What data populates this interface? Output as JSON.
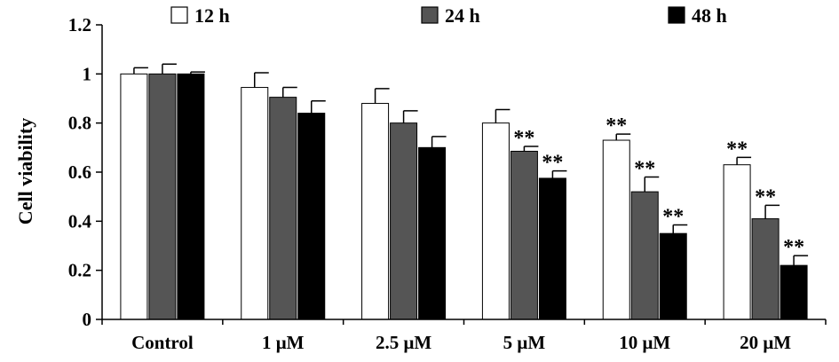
{
  "chart_data": {
    "type": "bar",
    "ylabel": "Cell viability",
    "xlabel": "",
    "ylim": [
      0,
      1.2
    ],
    "yticks": [
      0,
      0.2,
      0.4,
      0.6,
      0.8,
      1,
      1.2
    ],
    "ytick_labels": [
      "0",
      "0.2",
      "0.4",
      "0.6",
      "0.8",
      "1",
      "1.2"
    ],
    "categories": [
      "Control",
      "1 μM",
      "2.5 μM",
      "5 μM",
      "10 μM",
      "20 μM"
    ],
    "legend_position": "top",
    "series": [
      {
        "name": "12 h",
        "fill": "#ffffff",
        "values": [
          1.0,
          0.945,
          0.88,
          0.8,
          0.73,
          0.63
        ],
        "errors": [
          0.025,
          0.06,
          0.06,
          0.055,
          0.025,
          0.03
        ],
        "annotations": [
          "",
          "",
          "",
          "",
          "**",
          "**"
        ]
      },
      {
        "name": "24 h",
        "fill": "#555555",
        "values": [
          1.0,
          0.905,
          0.8,
          0.685,
          0.52,
          0.41
        ],
        "errors": [
          0.04,
          0.04,
          0.05,
          0.02,
          0.06,
          0.055
        ],
        "annotations": [
          "",
          "",
          "",
          "**",
          "**",
          "**"
        ]
      },
      {
        "name": "48 h",
        "fill": "#000000",
        "values": [
          1.0,
          0.84,
          0.7,
          0.575,
          0.35,
          0.22
        ],
        "errors": [
          0.008,
          0.05,
          0.045,
          0.03,
          0.035,
          0.04
        ],
        "annotations": [
          "",
          "",
          "",
          "**",
          "**",
          "**"
        ]
      }
    ]
  }
}
